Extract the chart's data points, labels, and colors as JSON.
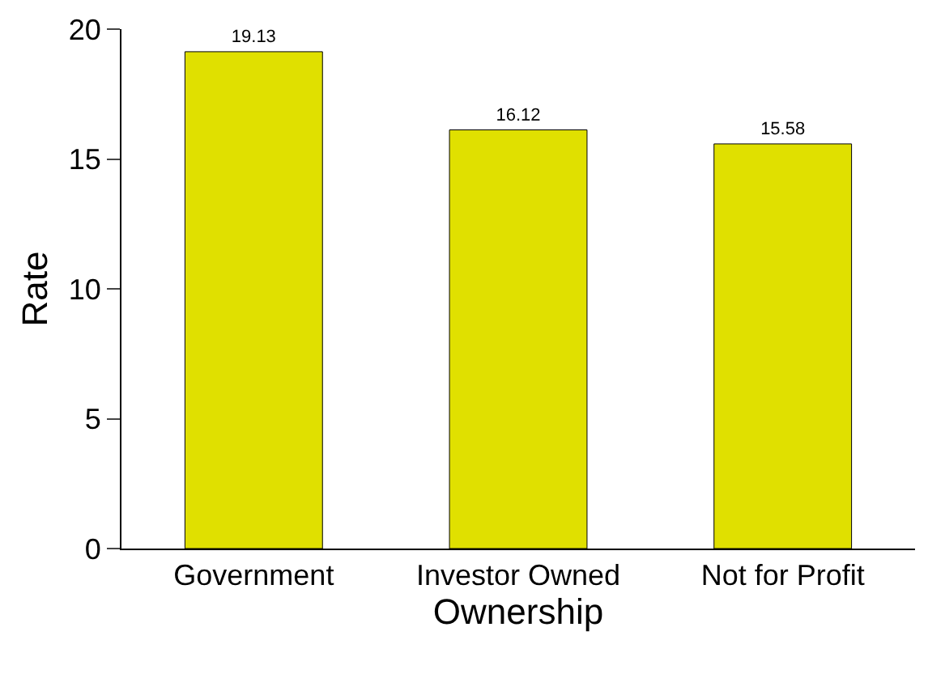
{
  "chart_data": {
    "type": "bar",
    "xlabel": "Ownership",
    "ylabel": "Rate",
    "categories": [
      "Government",
      "Investor Owned",
      "Not for Profit"
    ],
    "values": [
      19.13,
      16.12,
      15.58
    ],
    "color": "#e0e000",
    "ylim": [
      0,
      20
    ],
    "yticks": [
      0,
      5,
      10,
      15,
      20
    ],
    "data_labels": true
  }
}
